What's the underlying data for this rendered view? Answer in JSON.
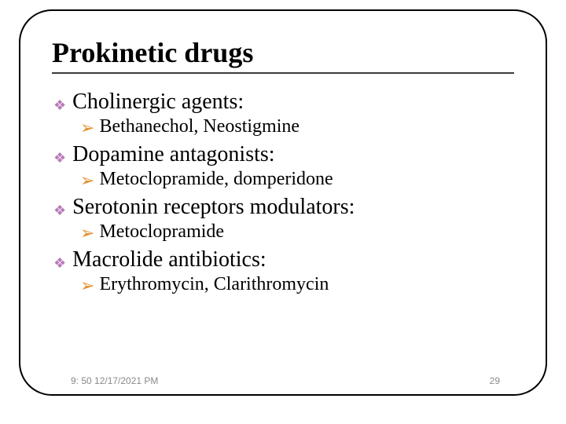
{
  "slide": {
    "title": "Prokinetic drugs",
    "bullet_colors": {
      "diamond": "#b97ab9",
      "arrow": "#e28f2a"
    },
    "title_font_size": 36,
    "category_font_size": 28,
    "sub_font_size": 24,
    "categories": [
      {
        "label": "Cholinergic agents:",
        "subs": [
          "Bethanechol, Neostigmine"
        ]
      },
      {
        "label": "Dopamine antagonists:",
        "subs": [
          "Metoclopramide, domperidone"
        ]
      },
      {
        "label": "Serotonin receptors modulators:",
        "subs": [
          "Metoclopramide"
        ]
      },
      {
        "label": "Macrolide antibiotics:",
        "subs": [
          "Erythromycin, Clarithromycin"
        ]
      }
    ]
  },
  "footer": {
    "timestamp": "9: 50 12/17/2021 PM",
    "page_number": "29"
  },
  "frame": {
    "border_color": "#000000",
    "border_radius": 42,
    "border_width": 2.5
  }
}
